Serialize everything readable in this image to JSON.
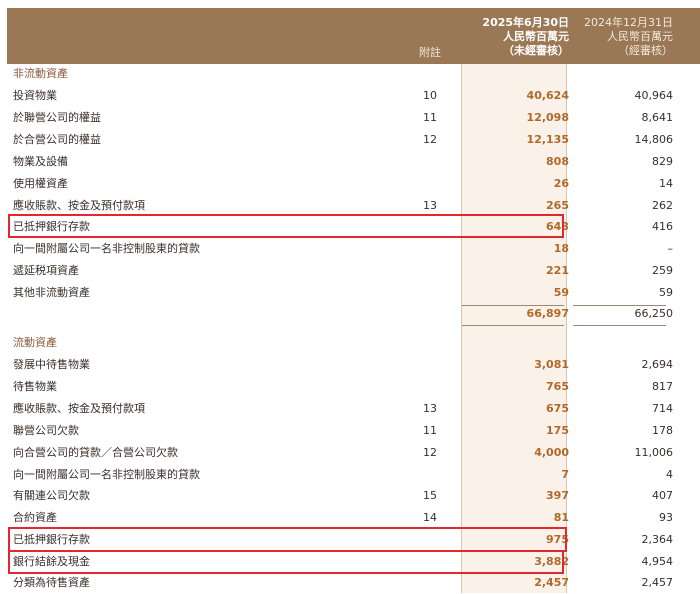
{
  "header": {
    "note_label": "附註",
    "current": {
      "line1": "2025年6月30日",
      "line2": "人民幣百萬元",
      "line3": "（未經審核）"
    },
    "prior": {
      "line1": "2024年12月31日",
      "line2": "人民幣百萬元",
      "line3": "（經審核）"
    }
  },
  "non_current": {
    "title": "非流動資產",
    "rows": [
      {
        "label": "投資物業",
        "note": "10",
        "cur": "40,624",
        "prev": "40,964"
      },
      {
        "label": "於聯營公司的權益",
        "note": "11",
        "cur": "12,098",
        "prev": "8,641"
      },
      {
        "label": "於合營公司的權益",
        "note": "12",
        "cur": "12,135",
        "prev": "14,806"
      },
      {
        "label": "物業及設備",
        "note": "",
        "cur": "808",
        "prev": "829"
      },
      {
        "label": "使用權資產",
        "note": "",
        "cur": "26",
        "prev": "14"
      },
      {
        "label": "應收賬款、按金及預付款項",
        "note": "13",
        "cur": "265",
        "prev": "262"
      },
      {
        "label": "已抵押銀行存款",
        "note": "",
        "cur": "643",
        "prev": "416"
      },
      {
        "label": "向一間附屬公司一名非控制股東的貸款",
        "note": "",
        "cur": "18",
        "prev": "–"
      },
      {
        "label": "遞延税項資產",
        "note": "",
        "cur": "221",
        "prev": "259"
      },
      {
        "label": "其他非流動資產",
        "note": "",
        "cur": "59",
        "prev": "59"
      }
    ],
    "total": {
      "cur": "66,897",
      "prev": "66,250"
    }
  },
  "current_assets": {
    "title": "流動資產",
    "rows": [
      {
        "label": "發展中待售物業",
        "note": "",
        "cur": "3,081",
        "prev": "2,694"
      },
      {
        "label": "待售物業",
        "note": "",
        "cur": "765",
        "prev": "817"
      },
      {
        "label": "應收賬款、按金及預付款項",
        "note": "13",
        "cur": "675",
        "prev": "714"
      },
      {
        "label": "聯營公司欠款",
        "note": "11",
        "cur": "175",
        "prev": "178"
      },
      {
        "label": "向合營公司的貸款／合營公司欠款",
        "note": "12",
        "cur": "4,000",
        "prev": "11,006"
      },
      {
        "label": "向一間附屬公司一名非控制股東的貸款",
        "note": "",
        "cur": "7",
        "prev": "4"
      },
      {
        "label": "有關連公司欠款",
        "note": "15",
        "cur": "397",
        "prev": "407"
      },
      {
        "label": "合約資產",
        "note": "14",
        "cur": "81",
        "prev": "93"
      },
      {
        "label": "已抵押銀行存款",
        "note": "",
        "cur": "975",
        "prev": "2,364"
      },
      {
        "label": "銀行結餘及現金",
        "note": "",
        "cur": "3,882",
        "prev": "4,954"
      },
      {
        "label": "分類為待售資產",
        "note": "",
        "cur": "2,457",
        "prev": "2,457"
      }
    ]
  },
  "colors": {
    "header_bg": "#9b7855",
    "current_col_bg": "#faf1e8",
    "current_value": "#b0692a",
    "highlight": "#e0282e"
  }
}
